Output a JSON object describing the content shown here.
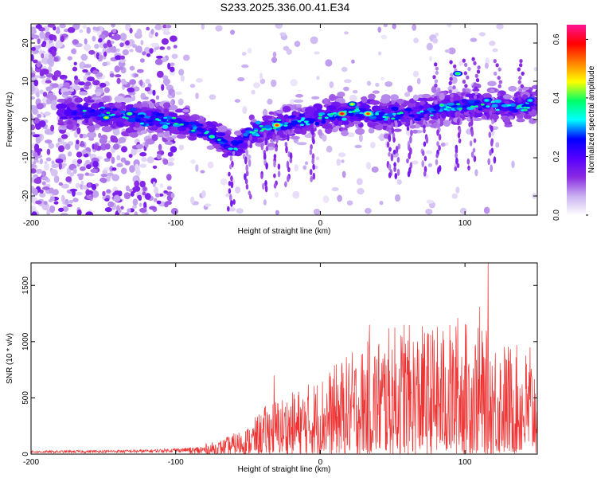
{
  "title": "S233.2025.336.00.41.E34",
  "chart_data": [
    {
      "type": "heatmap",
      "name": "spectrogram",
      "xlabel": "Height of straight line (km)",
      "ylabel": "Frequency (Hz)",
      "xlim": [
        -200,
        150
      ],
      "ylim": [
        -25,
        25
      ],
      "xticks": [
        -200,
        -100,
        0,
        100
      ],
      "yticks": [
        -20,
        -10,
        0,
        10,
        20
      ],
      "colorbar": {
        "label": "Normalized spectral amplitude",
        "range": [
          0.0,
          0.65
        ],
        "ticks": [
          "0.0",
          "0.2",
          "0.4",
          "0.6"
        ],
        "tick_values": [
          0.0,
          0.2,
          0.4,
          0.6
        ],
        "colors": [
          "#ffffff",
          "#c9b0f0",
          "#8a2be2",
          "#5500ff",
          "#0000ff",
          "#00ffff",
          "#00ff66",
          "#ffff00",
          "#ff7f00",
          "#ff0000",
          "#ff1493"
        ]
      },
      "ridge": [
        {
          "x": -175,
          "y": 2
        },
        {
          "x": -150,
          "y": 1.5
        },
        {
          "x": -125,
          "y": 0.5
        },
        {
          "x": -108,
          "y": 0
        },
        {
          "x": -95,
          "y": -1
        },
        {
          "x": -80,
          "y": -3
        },
        {
          "x": -70,
          "y": -5
        },
        {
          "x": -60,
          "y": -8
        },
        {
          "x": -50,
          "y": -4
        },
        {
          "x": -30,
          "y": -1.5
        },
        {
          "x": -10,
          "y": 0
        },
        {
          "x": 10,
          "y": 1.5
        },
        {
          "x": 30,
          "y": 2
        },
        {
          "x": 50,
          "y": 1
        },
        {
          "x": 70,
          "y": 2
        },
        {
          "x": 90,
          "y": 3
        },
        {
          "x": 110,
          "y": 4
        },
        {
          "x": 130,
          "y": 3
        },
        {
          "x": 150,
          "y": 4
        }
      ],
      "peak_blobs": [
        {
          "x": -148,
          "y": 0.5,
          "amp": 0.45
        },
        {
          "x": -132,
          "y": 1.5,
          "amp": 0.42
        },
        {
          "x": -75,
          "y": -4.5,
          "amp": 0.4
        },
        {
          "x": -30,
          "y": -1.5,
          "amp": 0.55
        },
        {
          "x": 15,
          "y": 1.5,
          "amp": 0.6
        },
        {
          "x": 33,
          "y": 1.5,
          "amp": 0.55
        },
        {
          "x": 22,
          "y": 4,
          "amp": 0.45
        },
        {
          "x": 95,
          "y": 12,
          "amp": 0.4
        },
        {
          "x": 115,
          "y": 5,
          "amp": 0.35
        },
        {
          "x": 145,
          "y": 5,
          "amp": 0.35
        }
      ]
    },
    {
      "type": "line",
      "name": "snr",
      "xlabel": "Height of straight line (km)",
      "ylabel": "SNR (10 * v/v)",
      "xlim": [
        -200,
        150
      ],
      "ylim": [
        0,
        1700
      ],
      "xticks": [
        -200,
        -100,
        0,
        100
      ],
      "yticks": [
        0,
        500,
        1000,
        1500
      ],
      "color": "#ee3333",
      "envelope": [
        {
          "x": -200,
          "max": 30
        },
        {
          "x": -120,
          "max": 40
        },
        {
          "x": -90,
          "max": 60
        },
        {
          "x": -70,
          "max": 120
        },
        {
          "x": -50,
          "max": 250
        },
        {
          "x": -35,
          "max": 480
        },
        {
          "x": -20,
          "max": 550
        },
        {
          "x": 0,
          "max": 700
        },
        {
          "x": 20,
          "max": 900
        },
        {
          "x": 50,
          "max": 1150
        },
        {
          "x": 80,
          "max": 1150
        },
        {
          "x": 100,
          "max": 1200
        },
        {
          "x": 130,
          "max": 1000
        },
        {
          "x": 150,
          "max": 900
        }
      ],
      "spikes": [
        {
          "x": -32,
          "y": 700
        },
        {
          "x": 34,
          "y": 1150
        },
        {
          "x": 58,
          "y": 1150
        },
        {
          "x": 95,
          "y": 1210
        },
        {
          "x": 110,
          "y": 1310
        },
        {
          "x": 116,
          "y": 1700
        },
        {
          "x": 145,
          "y": 950
        }
      ]
    }
  ]
}
